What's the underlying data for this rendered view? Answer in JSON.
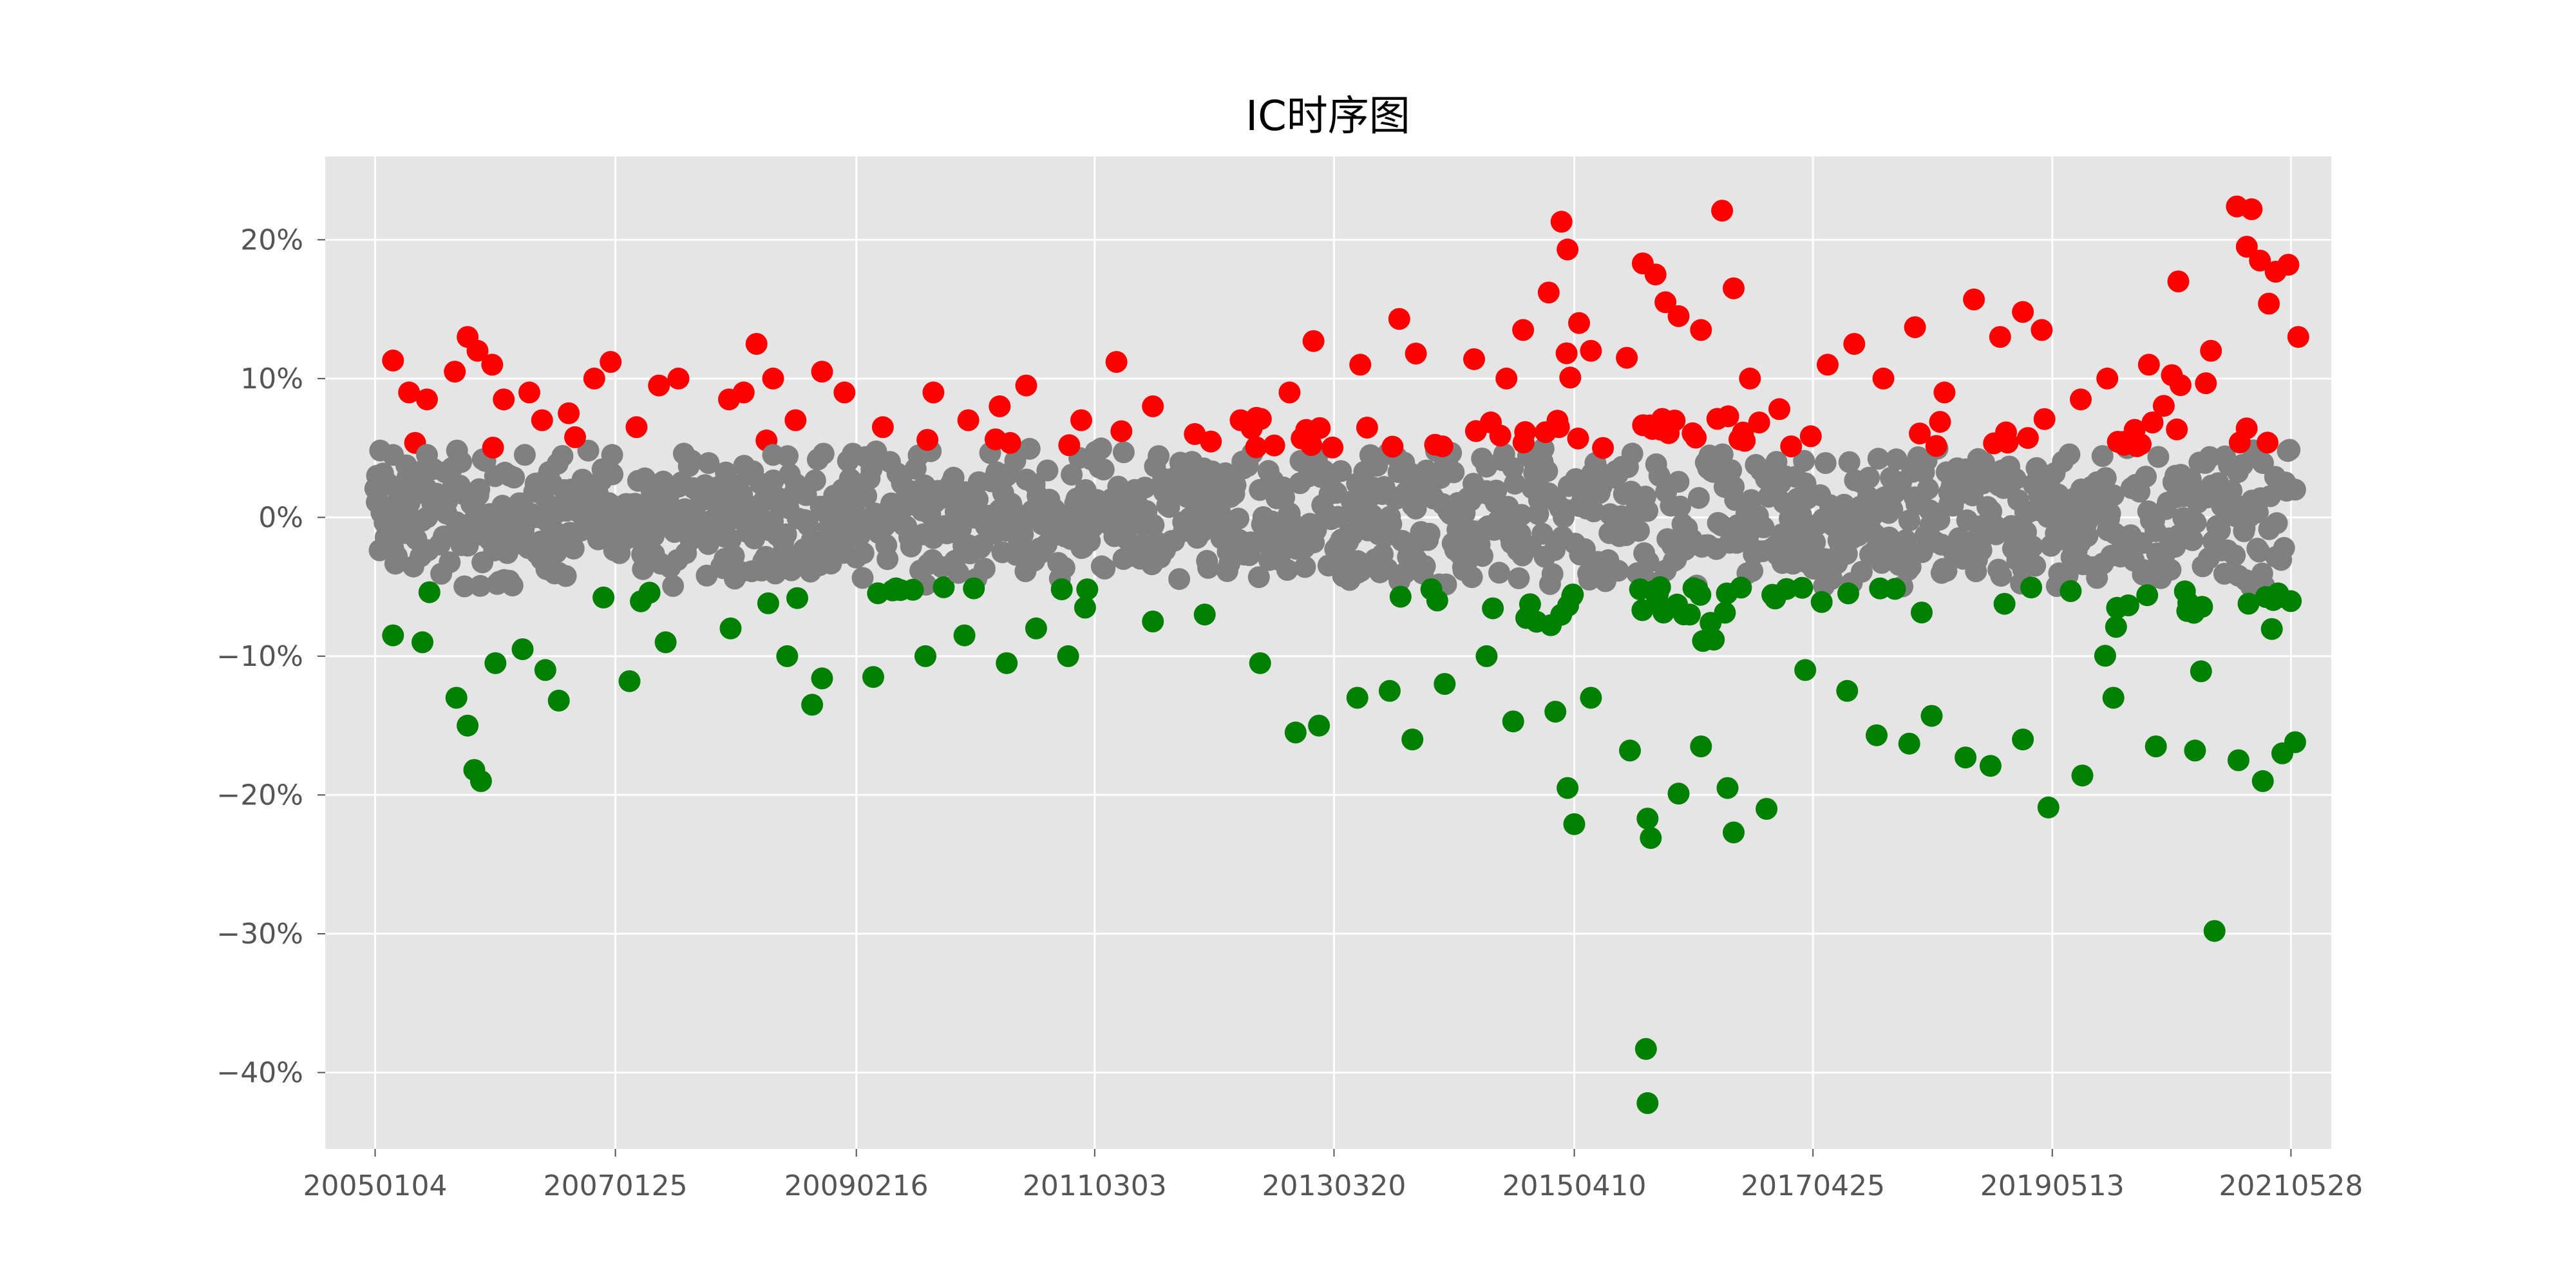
{
  "chart_data": {
    "type": "scatter",
    "title": "IC时序图",
    "xlabel": "",
    "ylabel": "",
    "x_tick_labels": [
      "20050104",
      "20070125",
      "20090216",
      "20110303",
      "20130320",
      "20150410",
      "20170425",
      "20190513",
      "20210528"
    ],
    "x_range": [
      "2004-08-01",
      "2021-10-01"
    ],
    "ylim": [
      -0.455,
      0.26
    ],
    "y_ticks": [
      0.2,
      0.1,
      0.0,
      -0.1,
      -0.2,
      -0.3,
      -0.4
    ],
    "y_tick_labels": [
      "20%",
      "10%",
      "0%",
      "−10%",
      "−20%",
      "−30%",
      "−40%"
    ],
    "grid": true,
    "legend": "none",
    "background": "#e5e5e5",
    "series_colors": {
      "positive": "#ff0000",
      "neutral": "#808080",
      "negative": "#008000"
    },
    "thresholds": {
      "upper": 0.05,
      "lower": -0.05
    },
    "series": [
      {
        "key": "positive",
        "values": [
          [
            "2005-03-01",
            0.113
          ],
          [
            "2005-04-20",
            0.09
          ],
          [
            "2005-06-15",
            0.085
          ],
          [
            "2005-09-10",
            0.105
          ],
          [
            "2005-10-20",
            0.13
          ],
          [
            "2005-11-20",
            0.12
          ],
          [
            "2006-01-05",
            0.11
          ],
          [
            "2006-02-10",
            0.085
          ],
          [
            "2006-05-01",
            0.09
          ],
          [
            "2006-06-10",
            0.07
          ],
          [
            "2006-09-01",
            0.075
          ],
          [
            "2006-11-20",
            0.1
          ],
          [
            "2007-01-10",
            0.112
          ],
          [
            "2007-04-01",
            0.065
          ],
          [
            "2007-06-10",
            0.095
          ],
          [
            "2007-08-10",
            0.1
          ],
          [
            "2008-01-15",
            0.085
          ],
          [
            "2008-03-01",
            0.09
          ],
          [
            "2008-04-10",
            0.125
          ],
          [
            "2008-06-01",
            0.1
          ],
          [
            "2008-08-10",
            0.07
          ],
          [
            "2008-11-01",
            0.105
          ],
          [
            "2009-01-10",
            0.09
          ],
          [
            "2009-05-10",
            0.065
          ],
          [
            "2009-10-15",
            0.09
          ],
          [
            "2010-02-01",
            0.07
          ],
          [
            "2010-05-10",
            0.08
          ],
          [
            "2010-08-01",
            0.095
          ],
          [
            "2011-01-20",
            0.07
          ],
          [
            "2011-05-10",
            0.112
          ],
          [
            "2011-09-01",
            0.08
          ],
          [
            "2012-01-10",
            0.06
          ],
          [
            "2012-06-01",
            0.07
          ],
          [
            "2012-11-01",
            0.09
          ],
          [
            "2013-01-15",
            0.127
          ],
          [
            "2013-06-10",
            0.11
          ],
          [
            "2013-10-10",
            0.143
          ],
          [
            "2013-12-01",
            0.118
          ],
          [
            "2014-06-01",
            0.114
          ],
          [
            "2014-09-10",
            0.1
          ],
          [
            "2014-11-01",
            0.135
          ],
          [
            "2015-01-20",
            0.162
          ],
          [
            "2015-03-01",
            0.213
          ],
          [
            "2015-03-20",
            0.193
          ],
          [
            "2015-04-25",
            0.14
          ],
          [
            "2015-06-01",
            0.12
          ],
          [
            "2015-11-10",
            0.183
          ],
          [
            "2015-12-20",
            0.175
          ],
          [
            "2016-01-20",
            0.155
          ],
          [
            "2016-03-01",
            0.145
          ],
          [
            "2016-05-10",
            0.135
          ],
          [
            "2016-07-15",
            0.221
          ],
          [
            "2016-08-20",
            0.165
          ],
          [
            "2016-10-10",
            0.1
          ],
          [
            "2017-01-10",
            0.078
          ],
          [
            "2017-06-10",
            0.11
          ],
          [
            "2017-09-01",
            0.125
          ],
          [
            "2017-12-01",
            0.1
          ],
          [
            "2018-03-10",
            0.137
          ],
          [
            "2018-06-10",
            0.09
          ],
          [
            "2018-09-10",
            0.157
          ],
          [
            "2018-12-01",
            0.13
          ],
          [
            "2019-02-10",
            0.148
          ],
          [
            "2019-04-10",
            0.135
          ],
          [
            "2019-08-10",
            0.085
          ],
          [
            "2019-11-01",
            0.1
          ],
          [
            "2020-03-10",
            0.11
          ],
          [
            "2020-06-10",
            0.17
          ],
          [
            "2020-09-20",
            0.12
          ],
          [
            "2020-12-10",
            0.224
          ],
          [
            "2021-01-10",
            0.195
          ],
          [
            "2021-01-25",
            0.222
          ],
          [
            "2021-02-20",
            0.185
          ],
          [
            "2021-03-20",
            0.154
          ],
          [
            "2021-04-10",
            0.177
          ],
          [
            "2021-05-20",
            0.182
          ],
          [
            "2021-06-20",
            0.13
          ]
        ]
      },
      {
        "key": "neutral",
        "values": [
          [
            "2005-01-10",
            0.03
          ],
          [
            "2005-03-01",
            0.045
          ],
          [
            "2005-06-15",
            0.045
          ],
          [
            "2005-10-01",
            -0.02
          ],
          [
            "2006-03-01",
            0.03
          ],
          [
            "2006-08-01",
            -0.04
          ],
          [
            "2007-01-15",
            0.045
          ],
          [
            "2007-07-01",
            0.02
          ],
          [
            "2008-01-01",
            -0.03
          ],
          [
            "2008-06-01",
            0.045
          ],
          [
            "2009-01-15",
            -0.01
          ],
          [
            "2009-06-01",
            0.04
          ],
          [
            "2010-01-01",
            -0.04
          ],
          [
            "2010-06-01",
            0.03
          ],
          [
            "2011-01-01",
            0.01
          ],
          [
            "2011-06-01",
            -0.03
          ],
          [
            "2012-01-01",
            0.04
          ],
          [
            "2012-06-01",
            -0.02
          ],
          [
            "2013-01-01",
            0.03
          ],
          [
            "2013-06-01",
            -0.04
          ],
          [
            "2014-01-01",
            0.02
          ],
          [
            "2014-06-01",
            -0.01
          ],
          [
            "2015-01-01",
            0.04
          ],
          [
            "2015-06-01",
            -0.04
          ],
          [
            "2016-01-01",
            0.03
          ],
          [
            "2016-06-01",
            -0.02
          ],
          [
            "2017-01-01",
            0.04
          ],
          [
            "2017-06-01",
            -0.03
          ],
          [
            "2018-01-01",
            0.02
          ],
          [
            "2018-06-01",
            -0.04
          ],
          [
            "2019-01-01",
            0.03
          ],
          [
            "2019-06-01",
            0.0
          ],
          [
            "2020-01-01",
            -0.02
          ],
          [
            "2020-06-01",
            0.03
          ],
          [
            "2021-01-01",
            -0.01
          ],
          [
            "2021-06-10",
            0.02
          ]
        ]
      },
      {
        "key": "negative",
        "values": [
          [
            "2005-03-01",
            -0.085
          ],
          [
            "2005-06-01",
            -0.09
          ],
          [
            "2005-09-15",
            -0.13
          ],
          [
            "2005-10-20",
            -0.15
          ],
          [
            "2005-11-10",
            -0.182
          ],
          [
            "2005-12-01",
            -0.19
          ],
          [
            "2006-01-15",
            -0.105
          ],
          [
            "2006-04-10",
            -0.095
          ],
          [
            "2006-06-20",
            -0.11
          ],
          [
            "2006-08-01",
            -0.132
          ],
          [
            "2007-03-10",
            -0.118
          ],
          [
            "2007-07-01",
            -0.09
          ],
          [
            "2008-01-20",
            -0.08
          ],
          [
            "2008-07-15",
            -0.1
          ],
          [
            "2008-10-01",
            -0.135
          ],
          [
            "2008-11-01",
            -0.116
          ],
          [
            "2009-04-10",
            -0.115
          ],
          [
            "2009-09-20",
            -0.1
          ],
          [
            "2010-01-20",
            -0.085
          ],
          [
            "2010-06-01",
            -0.105
          ],
          [
            "2010-09-01",
            -0.08
          ],
          [
            "2010-12-10",
            -0.1
          ],
          [
            "2011-02-01",
            -0.065
          ],
          [
            "2011-09-01",
            -0.075
          ],
          [
            "2012-02-10",
            -0.07
          ],
          [
            "2012-08-01",
            -0.105
          ],
          [
            "2012-11-20",
            -0.155
          ],
          [
            "2013-02-01",
            -0.15
          ],
          [
            "2013-06-01",
            -0.13
          ],
          [
            "2013-09-10",
            -0.125
          ],
          [
            "2013-11-20",
            -0.16
          ],
          [
            "2014-03-01",
            -0.12
          ],
          [
            "2014-07-10",
            -0.1
          ],
          [
            "2014-10-01",
            -0.147
          ],
          [
            "2015-02-10",
            -0.14
          ],
          [
            "2015-03-20",
            -0.195
          ],
          [
            "2015-04-10",
            -0.221
          ],
          [
            "2015-06-01",
            -0.13
          ],
          [
            "2015-10-01",
            -0.168
          ],
          [
            "2015-11-25",
            -0.217
          ],
          [
            "2015-12-05",
            -0.231
          ],
          [
            "2015-11-20",
            -0.383
          ],
          [
            "2015-11-25",
            -0.422
          ],
          [
            "2016-03-01",
            -0.199
          ],
          [
            "2016-05-10",
            -0.165
          ],
          [
            "2016-08-01",
            -0.195
          ],
          [
            "2016-08-20",
            -0.227
          ],
          [
            "2016-12-01",
            -0.21
          ],
          [
            "2017-04-01",
            -0.11
          ],
          [
            "2017-08-10",
            -0.125
          ],
          [
            "2017-11-10",
            -0.157
          ],
          [
            "2018-02-20",
            -0.163
          ],
          [
            "2018-05-01",
            -0.143
          ],
          [
            "2018-08-15",
            -0.173
          ],
          [
            "2018-11-01",
            -0.179
          ],
          [
            "2019-02-10",
            -0.16
          ],
          [
            "2019-05-01",
            -0.209
          ],
          [
            "2019-08-15",
            -0.186
          ],
          [
            "2019-11-20",
            -0.13
          ],
          [
            "2020-04-01",
            -0.165
          ],
          [
            "2020-08-01",
            -0.168
          ],
          [
            "2020-10-01",
            -0.298
          ],
          [
            "2020-12-15",
            -0.175
          ],
          [
            "2021-03-01",
            -0.19
          ],
          [
            "2021-05-01",
            -0.17
          ],
          [
            "2021-06-10",
            -0.162
          ]
        ]
      }
    ]
  }
}
